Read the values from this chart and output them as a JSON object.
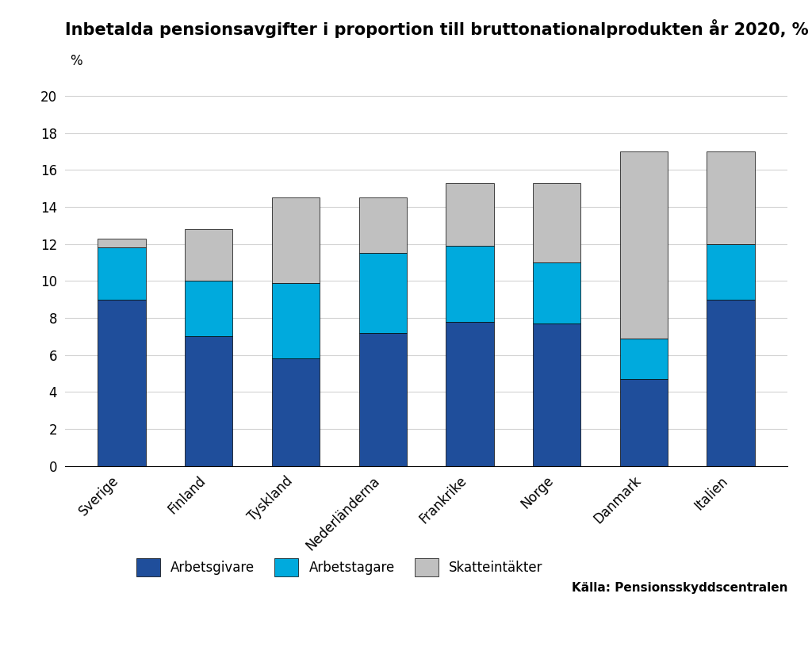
{
  "title": "Inbetalda pensionsavgifter i proportion till bruttonationalprodukten år 2020, %",
  "percent_label": "%",
  "source": "Källa: Pensionsskyddscentralen",
  "categories": [
    "Sverige",
    "Finland",
    "Tyskland",
    "Nederländerna",
    "Frankrike",
    "Norge",
    "Danmark",
    "Italien"
  ],
  "arbetsgivare": [
    9.0,
    7.0,
    5.8,
    7.2,
    7.8,
    7.7,
    4.7,
    9.0
  ],
  "arbetstagare": [
    2.8,
    3.0,
    4.1,
    4.3,
    4.1,
    3.3,
    2.2,
    3.0
  ],
  "skatteintakter": [
    0.5,
    2.8,
    4.6,
    3.0,
    3.4,
    4.3,
    10.1,
    5.0
  ],
  "color_arbetsgivare": "#1f4e9b",
  "color_arbetstagare": "#00aadd",
  "color_skatteintakter": "#c0c0c0",
  "bar_edgecolor": "black",
  "bar_linewidth": 0.5,
  "ylim": [
    0,
    21
  ],
  "yticks": [
    0,
    2,
    4,
    6,
    8,
    10,
    12,
    14,
    16,
    18,
    20
  ],
  "legend_labels": [
    "Arbetsgivare",
    "Arbetstagare",
    "Skatteintäkter"
  ],
  "title_fontsize": 15,
  "axis_fontsize": 12,
  "tick_fontsize": 12,
  "legend_fontsize": 12,
  "source_fontsize": 11,
  "bar_width": 0.55
}
